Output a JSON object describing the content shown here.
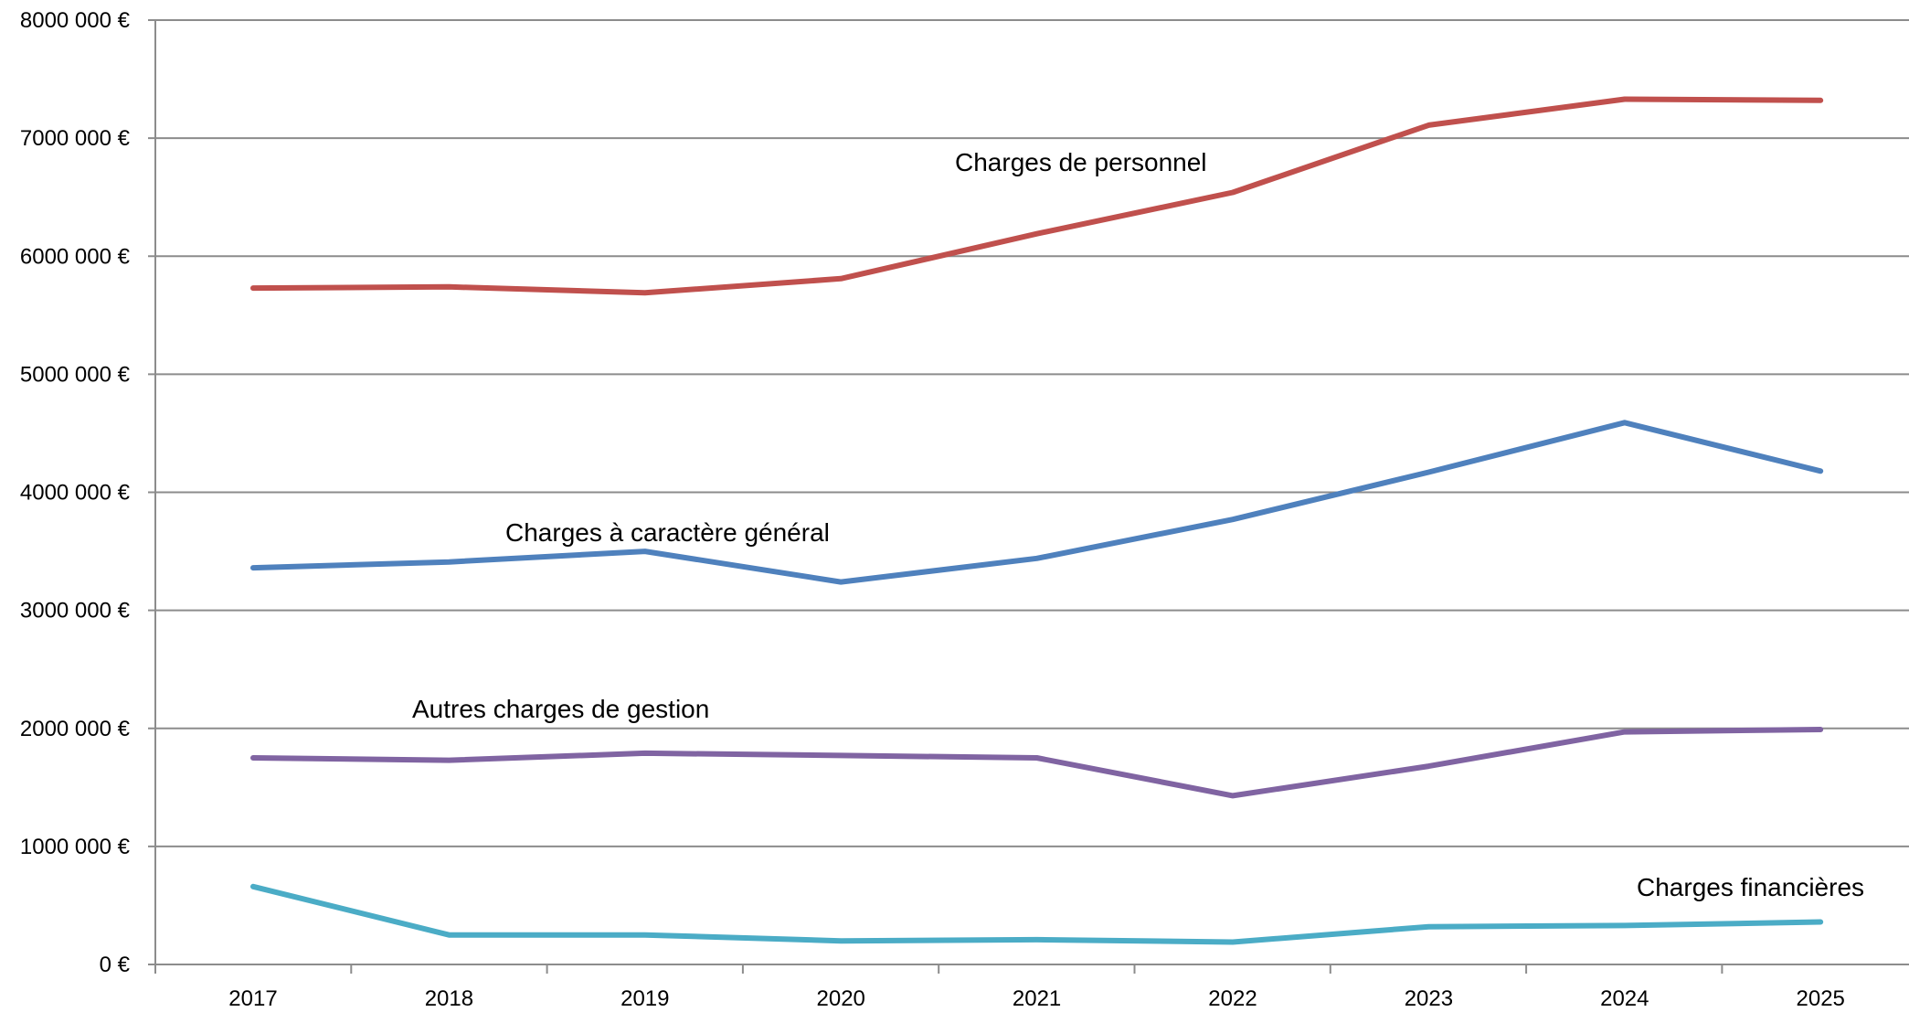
{
  "chart_data": {
    "type": "line",
    "title": "",
    "xlabel": "",
    "ylabel": "",
    "categories": [
      "2017",
      "2018",
      "2019",
      "2020",
      "2021",
      "2022",
      "2023",
      "2024",
      "2025"
    ],
    "ylim": [
      0,
      8000000
    ],
    "yticks": [
      {
        "value": 0,
        "label": "0 €"
      },
      {
        "value": 1000000,
        "label": "1000 000 €"
      },
      {
        "value": 2000000,
        "label": "2000 000 €"
      },
      {
        "value": 3000000,
        "label": "3000 000 €"
      },
      {
        "value": 4000000,
        "label": "4000 000 €"
      },
      {
        "value": 5000000,
        "label": "5000 000 €"
      },
      {
        "value": 6000000,
        "label": "6000 000 €"
      },
      {
        "value": 7000000,
        "label": "7000 000 €"
      },
      {
        "value": 8000000,
        "label": "8000 000 €"
      }
    ],
    "grid": true,
    "legend": "none",
    "series": [
      {
        "name": "Charges de personnel",
        "color": "#C0504D",
        "values": [
          5730000,
          5740000,
          5690000,
          5810000,
          6190000,
          6540000,
          7110000,
          7330000,
          7320000
        ]
      },
      {
        "name": "Charges à caractère général",
        "color": "#4F81BD",
        "values": [
          3360000,
          3410000,
          3500000,
          3240000,
          3440000,
          3770000,
          4170000,
          4590000,
          4180000
        ]
      },
      {
        "name": "Autres charges de gestion",
        "color": "#8064A2",
        "values": [
          1750000,
          1730000,
          1790000,
          1770000,
          1750000,
          1430000,
          1680000,
          1970000,
          1990000
        ]
      },
      {
        "name": "Charges financières",
        "color": "#4BACC6",
        "values": [
          660000,
          250000,
          250000,
          200000,
          210000,
          190000,
          320000,
          330000,
          360000
        ]
      }
    ]
  }
}
